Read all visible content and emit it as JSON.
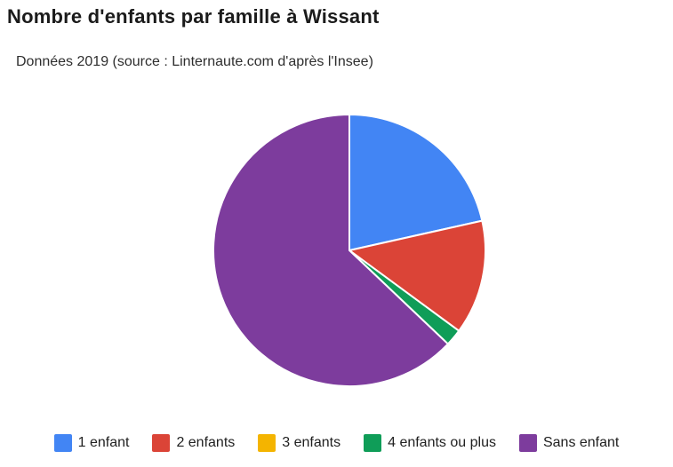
{
  "title": "Nombre d'enfants par famille à Wissant",
  "subtitle": "Données 2019 (source : Linternaute.com d'après l'Insee)",
  "chart_data": {
    "type": "pie",
    "title": "Nombre d'enfants par famille à Wissant",
    "subtitle": "Données 2019 (source : Linternaute.com d'après l'Insee)",
    "unit": "percent",
    "start_angle_deg": 0,
    "direction": "clockwise",
    "legend_position": "bottom",
    "slice_separator_color": "#ffffff",
    "slices": [
      {
        "label": "1 enfant",
        "value": 21.5,
        "color": "#4285F4"
      },
      {
        "label": "2 enfants",
        "value": 13.6,
        "color": "#DB4437"
      },
      {
        "label": "3 enfants",
        "value": 0.0,
        "color": "#F4B400"
      },
      {
        "label": "4 enfants ou plus",
        "value": 2.0,
        "color": "#0F9D58"
      },
      {
        "label": "Sans enfant",
        "value": 62.9,
        "color": "#7D3C9D"
      }
    ]
  }
}
